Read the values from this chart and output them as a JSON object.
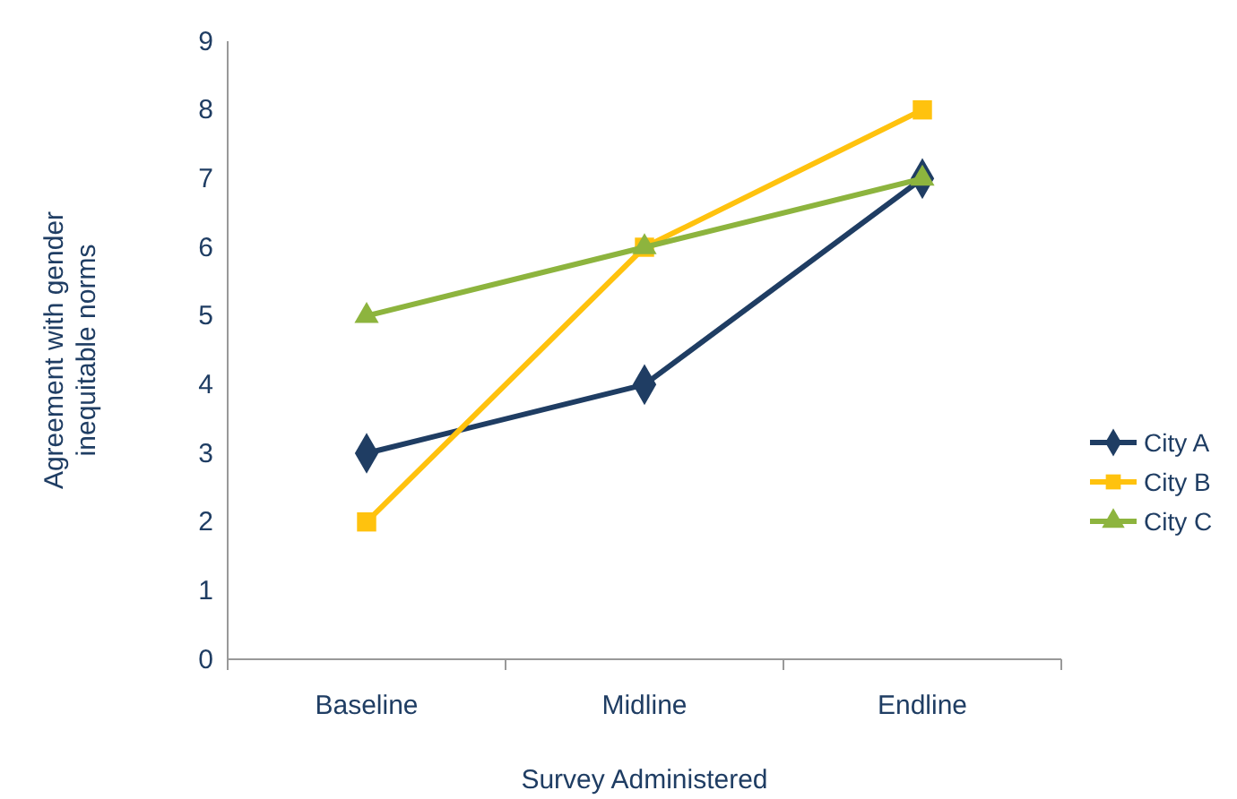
{
  "chart_data": {
    "type": "line",
    "xlabel": "Survey Administered",
    "ylabel": "Agreement with gender inequitable norms",
    "categories": [
      "Baseline",
      "Midline",
      "Endline"
    ],
    "series": [
      {
        "name": "City A",
        "color": "#1f3d63",
        "marker": "diamond",
        "values": [
          3,
          4,
          7
        ]
      },
      {
        "name": "City B",
        "color": "#ffc20e",
        "marker": "square",
        "values": [
          2,
          6,
          8
        ]
      },
      {
        "name": "City C",
        "color": "#8db43e",
        "marker": "triangle",
        "values": [
          5,
          6,
          7
        ]
      }
    ],
    "ylim": [
      0,
      9
    ],
    "yticks": [
      0,
      1,
      2,
      3,
      4,
      5,
      6,
      7,
      8,
      9
    ],
    "grid": false,
    "legend": "right",
    "line_style": "solid"
  }
}
